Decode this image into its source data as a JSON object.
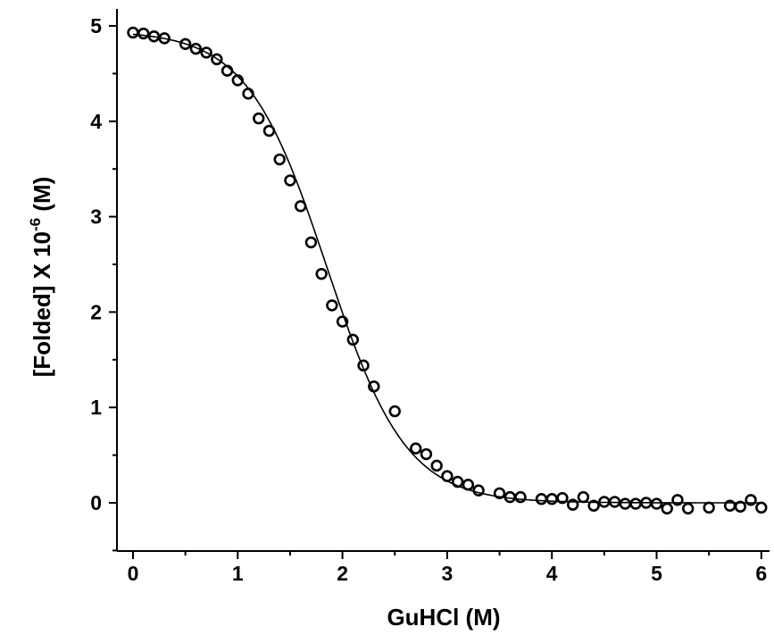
{
  "chart_data": {
    "type": "scatter",
    "xlabel": "GuHCl (M)",
    "ylabel": {
      "main": "[Folded] X 10",
      "exponent": "-6",
      "unit": "(M)"
    },
    "xlim": [
      -0.15,
      6.1
    ],
    "ylim": [
      -0.5,
      5.0
    ],
    "xticks": [
      0,
      1,
      2,
      3,
      4,
      5,
      6
    ],
    "yticks": [
      0,
      1,
      2,
      3,
      4,
      5
    ],
    "grid": false,
    "legend": "none",
    "fit": {
      "style": "sigmoid line",
      "y_top": 4.95,
      "y_bottom": 0.0,
      "midpoint": 1.85,
      "width": 0.38
    },
    "series": [
      {
        "marker": "open-circle",
        "x": [
          0.0,
          0.1,
          0.2,
          0.3,
          0.5,
          0.6,
          0.7,
          0.8,
          0.9,
          1.0,
          1.1,
          1.2,
          1.3,
          1.4,
          1.5,
          1.6,
          1.7,
          1.8,
          1.9,
          2.0,
          2.1,
          2.2,
          2.3,
          2.5,
          2.7,
          2.8,
          2.9,
          3.0,
          3.1,
          3.2,
          3.3,
          3.5,
          3.6,
          3.7,
          3.9,
          4.0,
          4.1,
          4.2,
          4.3,
          4.4,
          4.5,
          4.6,
          4.7,
          4.8,
          4.9,
          5.0,
          5.1,
          5.2,
          5.3,
          5.5,
          5.7,
          5.8,
          5.9,
          6.0
        ],
        "y": [
          4.93,
          4.92,
          4.89,
          4.87,
          4.81,
          4.76,
          4.72,
          4.65,
          4.53,
          4.43,
          4.29,
          4.03,
          3.9,
          3.6,
          3.38,
          3.11,
          2.73,
          2.4,
          2.07,
          1.9,
          1.71,
          1.44,
          1.22,
          0.96,
          0.57,
          0.51,
          0.39,
          0.28,
          0.22,
          0.19,
          0.13,
          0.1,
          0.06,
          0.06,
          0.04,
          0.04,
          0.05,
          -0.02,
          0.06,
          -0.03,
          0.01,
          0.01,
          -0.01,
          -0.01,
          0.0,
          -0.01,
          -0.06,
          0.03,
          -0.06,
          -0.05,
          -0.03,
          -0.04,
          0.03,
          -0.05
        ]
      }
    ]
  }
}
